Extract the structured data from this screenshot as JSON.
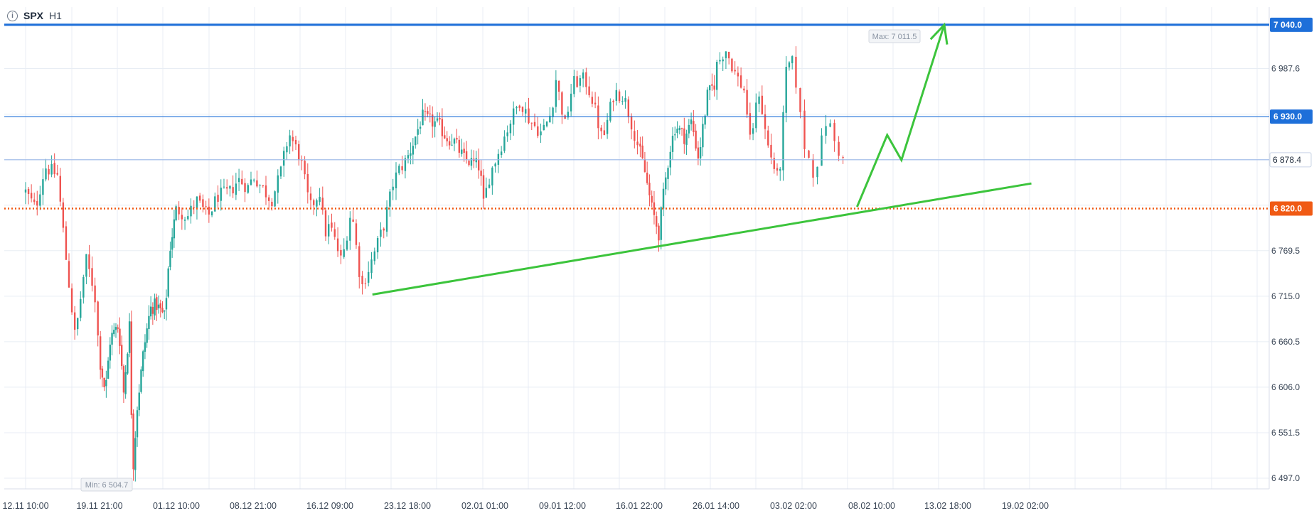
{
  "header": {
    "symbol": "SPX",
    "timeframe": "H1",
    "info_icon": "info-icon"
  },
  "colors": {
    "up": "#26a69a",
    "down": "#ef5350",
    "grid": "#e8edf4",
    "blue_line": "#1e6fd9",
    "orange_line": "#f05a14",
    "trend": "#3cc43c",
    "price_tag_text": "#1e2a3a",
    "axis_text": "#3a4656"
  },
  "chart_data": {
    "type": "candlestick",
    "title": "",
    "ylim": [
      6470,
      7075
    ],
    "y_ticks": [
      "6 497.0",
      "6 551.5",
      "6 606.0",
      "6 660.5",
      "6 715.0",
      "6 769.5",
      "6 987.6"
    ],
    "x_ticks": [
      "12.11 10:00",
      "19.11 21:00",
      "01.12 10:00",
      "08.12 21:00",
      "16.12 09:00",
      "23.12 18:00",
      "02.01 01:00",
      "09.01 12:00",
      "16.01 22:00",
      "26.01 14:00",
      "03.02 02:00",
      "08.02 10:00",
      "13.02 18:00",
      "19.02 02:00"
    ],
    "price_series_anchors": [
      [
        "12.11 10:00",
        6840
      ],
      [
        "13.11 10:00",
        6820
      ],
      [
        "14.11 09:00",
        6870
      ],
      [
        "15.11 15:00",
        6860
      ],
      [
        "16.11 12:00",
        6760
      ],
      [
        "17.11 10:00",
        6665
      ],
      [
        "18.11 12:00",
        6760
      ],
      [
        "19.11 09:00",
        6720
      ],
      [
        "19.11 21:00",
        6640
      ],
      [
        "20.11 18:00",
        6600
      ],
      [
        "21.11 12:00",
        6665
      ],
      [
        "22.11 18:00",
        6680
      ],
      [
        "23.11 12:00",
        6600
      ],
      [
        "24.11 09:00",
        6680
      ],
      [
        "24.11 21:00",
        6505
      ],
      [
        "25.11 12:00",
        6580
      ],
      [
        "26.11 12:00",
        6650
      ],
      [
        "27.11 12:00",
        6700
      ],
      [
        "28.11 10:00",
        6705
      ],
      [
        "29.11 16:00",
        6690
      ],
      [
        "30.11 10:00",
        6770
      ],
      [
        "01.12 10:00",
        6820
      ],
      [
        "02.12 12:00",
        6810
      ],
      [
        "03.12 09:00",
        6830
      ],
      [
        "04.12 12:00",
        6810
      ],
      [
        "05.12 10:00",
        6835
      ],
      [
        "06.12 16:00",
        6840
      ],
      [
        "07.12 10:00",
        6855
      ],
      [
        "08.12 10:00",
        6845
      ],
      [
        "08.12 21:00",
        6860
      ],
      [
        "09.12 18:00",
        6845
      ],
      [
        "10.12 16:00",
        6830
      ],
      [
        "11.12 12:00",
        6860
      ],
      [
        "12.12 09:00",
        6910
      ],
      [
        "13.12 12:00",
        6880
      ],
      [
        "14.12 10:00",
        6820
      ],
      [
        "15.12 09:00",
        6840
      ],
      [
        "15.12 21:00",
        6790
      ],
      [
        "16.12 09:00",
        6800
      ],
      [
        "17.12 12:00",
        6755
      ],
      [
        "18.12 10:00",
        6820
      ],
      [
        "19.12 09:00",
        6725
      ],
      [
        "20.12 10:00",
        6760
      ],
      [
        "21.12 12:00",
        6800
      ],
      [
        "22.12 09:00",
        6850
      ],
      [
        "22.12 21:00",
        6865
      ],
      [
        "23.12 18:00",
        6880
      ],
      [
        "24.12 16:00",
        6905
      ],
      [
        "25.12 12:00",
        6930
      ],
      [
        "26.12 10:00",
        6925
      ],
      [
        "27.12 12:00",
        6920
      ],
      [
        "28.12 10:00",
        6905
      ],
      [
        "29.12 09:00",
        6900
      ],
      [
        "30.12 12:00",
        6880
      ],
      [
        "01.01 10:00",
        6870
      ],
      [
        "01.01 21:00",
        6825
      ],
      [
        "02.01 12:00",
        6860
      ],
      [
        "03.01 10:00",
        6890
      ],
      [
        "04.01 12:00",
        6925
      ],
      [
        "05.01 10:00",
        6950
      ],
      [
        "06.01 09:00",
        6925
      ],
      [
        "07.01 12:00",
        6910
      ],
      [
        "08.01 10:00",
        6935
      ],
      [
        "08.01 21:00",
        6975
      ],
      [
        "09.01 18:00",
        6920
      ],
      [
        "10.01 12:00",
        6970
      ],
      [
        "11.01 16:00",
        6975
      ],
      [
        "12.01 10:00",
        6950
      ],
      [
        "13.01 09:00",
        6900
      ],
      [
        "14.01 12:00",
        6960
      ],
      [
        "15.01 10:00",
        6955
      ],
      [
        "15.01 21:00",
        6935
      ],
      [
        "16.01 22:00",
        6890
      ],
      [
        "17.01 12:00",
        6870
      ],
      [
        "18.01 12:00",
        6820
      ],
      [
        "19.01 09:00",
        6790
      ],
      [
        "19.01 21:00",
        6830
      ],
      [
        "20.01 18:00",
        6890
      ],
      [
        "21.01 12:00",
        6920
      ],
      [
        "22.01 16:00",
        6905
      ],
      [
        "23.01 12:00",
        6925
      ],
      [
        "24.01 09:00",
        6880
      ],
      [
        "25.01 12:00",
        6955
      ],
      [
        "26.01 10:00",
        6970
      ],
      [
        "26.01 14:00",
        6990
      ],
      [
        "27.01 12:00",
        7011.5
      ],
      [
        "28.01 12:00",
        6980
      ],
      [
        "29.01 09:00",
        6960
      ],
      [
        "29.01 21:00",
        6900
      ],
      [
        "30.01 18:00",
        6960
      ],
      [
        "31.01 12:00",
        6900
      ],
      [
        "01.02 16:00",
        6850
      ],
      [
        "02.02 10:00",
        6990
      ],
      [
        "03.02 02:00",
        6995
      ],
      [
        "03.02 18:00",
        6900
      ],
      [
        "04.02 12:00",
        6860
      ],
      [
        "05.02 09:00",
        6930
      ],
      [
        "05.02 21:00",
        6900
      ],
      [
        "06.02 16:00",
        6870
      ]
    ],
    "annotations": {
      "max_label": "Max: 7 011.5",
      "min_label": "Min: 6 504.7"
    },
    "horizontal_levels": [
      {
        "value": 7040.0,
        "label": "7 040.0",
        "style": "solid-thick",
        "color": "#1e6fd9",
        "tag": "filled-blue"
      },
      {
        "value": 6930.0,
        "label": "6 930.0",
        "style": "solid-thin",
        "color": "#1e6fd9",
        "tag": "filled-blue"
      },
      {
        "value": 6878.4,
        "label": "6 878.4",
        "style": "solid-thin-light",
        "color": "#9bb7e8",
        "tag": "outline-current"
      },
      {
        "value": 6820.0,
        "label": "6 820.0",
        "style": "dotted",
        "color": "#f05a14",
        "tag": "filled-orange"
      }
    ],
    "trendline": {
      "from": [
        "20.12 10:00",
        6717
      ],
      "to": [
        "19.02 12:00",
        6850
      ]
    },
    "forecast_arrow": {
      "points": [
        [
          "07.02 10:00",
          6822
        ],
        [
          "09.02 12:00",
          6908
        ],
        [
          "10.02 12:00",
          6878
        ],
        [
          "13.02 12:00",
          7040
        ]
      ],
      "arrowhead_at": [
        "13.02 12:00",
        7040
      ]
    }
  }
}
